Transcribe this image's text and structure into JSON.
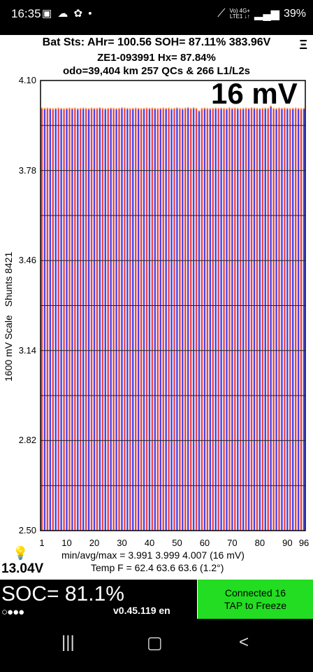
{
  "status_bar": {
    "time": "16:35",
    "notifications": "▣ ☁ ✿ •",
    "network_top": "Vo) 4G+",
    "network_bottom": "LTE1 ↓↑",
    "battery": "39%"
  },
  "header": {
    "line1": "Bat Sts:  AHr= 100.56  SOH= 87.11%   383.96V",
    "line2": "ZE1-093991    Hx= 87.84%",
    "line3": "odo=39,404 km 257 QCs & 266 L1/L2s",
    "menu_icon": "Ξ"
  },
  "overlay": {
    "spread": "16 mV",
    "y_axis_label": "1600 mV Scale   Shunts 8421"
  },
  "chart_data": {
    "type": "bar",
    "y_ticks": [
      "4.10",
      "3.78",
      "3.46",
      "3.14",
      "2.82",
      "2.50"
    ],
    "x_ticks": [
      "1",
      "10",
      "20",
      "30",
      "40",
      "50",
      "60",
      "70",
      "80",
      "90",
      "96"
    ],
    "ylim": [
      2.5,
      4.1
    ],
    "grid": true,
    "cell_count": 96,
    "colors": {
      "odd_cells": "#ee4444",
      "even_cells": "#4444ee",
      "shunt": "#ff9966"
    },
    "values": [
      4.0,
      3.999,
      4.0,
      3.999,
      3.998,
      3.999,
      4.0,
      3.999,
      3.998,
      3.999,
      4.0,
      3.999,
      4.0,
      3.998,
      3.999,
      4.0,
      3.999,
      3.998,
      4.0,
      3.999,
      3.999,
      4.001,
      3.999,
      3.998,
      3.999,
      4.0,
      3.999,
      3.998,
      3.999,
      4.001,
      4.0,
      3.999,
      3.998,
      3.999,
      4.0,
      3.999,
      3.998,
      3.999,
      4.0,
      3.999,
      4.0,
      3.999,
      3.998,
      3.999,
      4.0,
      3.999,
      4.0,
      3.998,
      3.999,
      4.001,
      3.999,
      3.998,
      4.0,
      4.002,
      3.999,
      4.001,
      3.999,
      3.991,
      3.999,
      4.0,
      3.999,
      3.998,
      3.999,
      4.0,
      3.999,
      4.0,
      3.999,
      3.998,
      4.001,
      3.999,
      4.0,
      3.999,
      3.998,
      3.999,
      4.0,
      3.999,
      4.001,
      4.0,
      3.999,
      3.998,
      3.999,
      4.0,
      3.999,
      4.007,
      3.999,
      3.998,
      4.0,
      3.999,
      4.0,
      3.999,
      3.998,
      3.999,
      4.0,
      3.999,
      3.998,
      3.999
    ]
  },
  "footer": {
    "bulb_icon": "💡",
    "pack_voltage": "13.04V",
    "min_avg_max": "min/avg/max = 3.991 3.999 4.007  (16 mV)",
    "temp": "Temp F = 62.4  63.6  63.6  (1.2°)"
  },
  "bottom": {
    "soc": "SOC= 81.1%",
    "dots": "○●●●",
    "version": "v0.45.119 en",
    "connect_line1": "Connected 16",
    "connect_line2": "TAP to Freeze"
  },
  "nav": {
    "recent": "|||",
    "home": "▢",
    "back": "<"
  }
}
